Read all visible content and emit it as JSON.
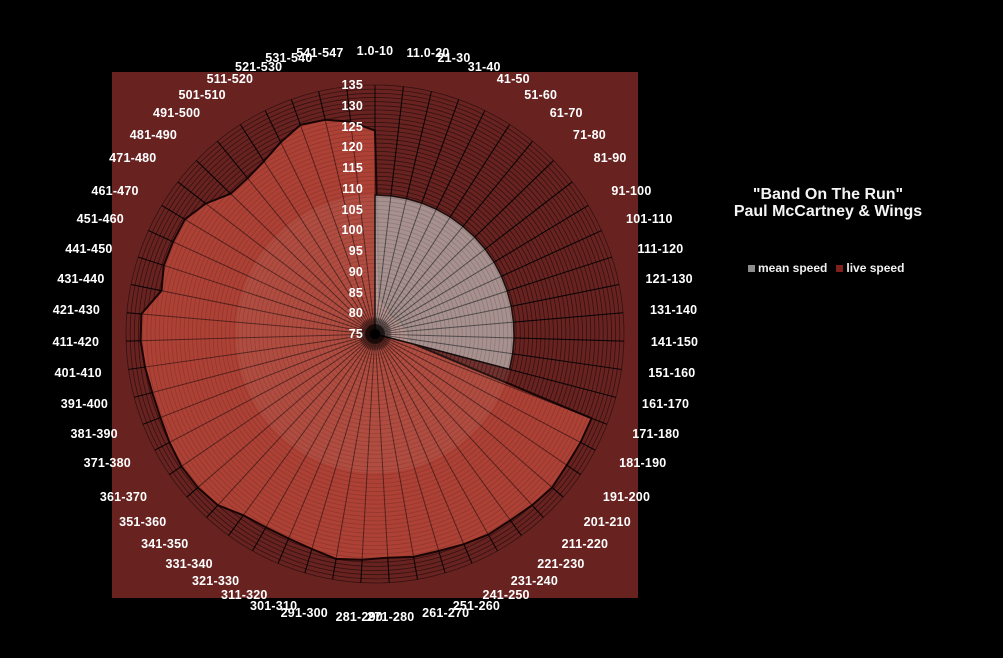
{
  "page": {
    "background": "#000000"
  },
  "title": {
    "line1": "\"Band On The Run\"",
    "line2": "Paul McCartney & Wings"
  },
  "legend": {
    "items": [
      {
        "label": "mean speed",
        "color": "#8c8c8c"
      },
      {
        "label": "live speed",
        "color": "#7e201c"
      }
    ]
  },
  "chart_data": {
    "type": "radar",
    "title": "\"Band On The Run\" Paul McCartney & Wings",
    "direction": "clockwise",
    "start_angle": "top",
    "rlim": [
      75,
      135
    ],
    "radial_ticks": [
      75,
      80,
      85,
      90,
      95,
      100,
      105,
      110,
      115,
      120,
      125,
      130,
      135
    ],
    "ring_step": 1,
    "grid": true,
    "legend_position": "right",
    "categories": [
      "1.0-10",
      "11.0-20",
      "21-30",
      "31-40",
      "41-50",
      "51-60",
      "61-70",
      "71-80",
      "81-90",
      "91-100",
      "101-110",
      "111-120",
      "121-130",
      "131-140",
      "141-150",
      "151-160",
      "161-170",
      "171-180",
      "181-190",
      "191-200",
      "201-210",
      "211-220",
      "221-230",
      "231-240",
      "241-250",
      "251-260",
      "261-270",
      "271-280",
      "281-290",
      "291-300",
      "301-310",
      "311-320",
      "321-330",
      "331-340",
      "341-350",
      "351-360",
      "361-370",
      "371-380",
      "381-390",
      "391-400",
      "401-410",
      "411-420",
      "421-430",
      "431-440",
      "441-450",
      "451-460",
      "461-470",
      "471-480",
      "481-490",
      "491-500",
      "501-510",
      "511-520",
      "521-530",
      "531-540",
      "541-547"
    ],
    "series": [
      {
        "name": "mean speed",
        "fill": "#b3a8a7",
        "fill_opacity": 0.78,
        "values": [
          108.5,
          108.5,
          108.5,
          108.5,
          108.5,
          108.5,
          108.5,
          108.5,
          108.5,
          108.5,
          108.5,
          108.5,
          108.5,
          108.5,
          108.5,
          108.5,
          108.5,
          null,
          null,
          null,
          null,
          null,
          null,
          null,
          null,
          null,
          null,
          null,
          null,
          null,
          null,
          null,
          null,
          null,
          null,
          null,
          null,
          null,
          null,
          null,
          null,
          null,
          null,
          null,
          null,
          null,
          null,
          null,
          null,
          null,
          null,
          null,
          null,
          null,
          null
        ]
      },
      {
        "name": "live speed",
        "fill": "#b8463a",
        "fill_opacity": 0.87,
        "values": [
          124,
          84,
          83,
          82.5,
          82,
          81.5,
          81,
          81,
          81.5,
          81.5,
          82,
          82,
          82.5,
          83,
          83,
          83.5,
          85,
          131,
          131,
          131,
          131.5,
          131,
          130.5,
          130.5,
          130,
          129.5,
          129.5,
          129,
          129.5,
          130,
          129,
          128.5,
          128.5,
          129,
          131,
          131.5,
          131.5,
          131,
          130.5,
          130.5,
          131,
          131.5,
          131.5,
          127.5,
          128.5,
          128.5,
          128.5,
          126.5,
          123.5,
          123.5,
          124.5,
          126.5,
          128.5,
          128,
          126.5
        ]
      }
    ],
    "colors": {
      "plot_bg": "#682321",
      "grid_ring": "rgba(0,0,0,0.42)",
      "grid_spoke": "rgba(0,0,0,0.8)",
      "series_border": "#1a0504",
      "label": "#ffffff"
    }
  }
}
